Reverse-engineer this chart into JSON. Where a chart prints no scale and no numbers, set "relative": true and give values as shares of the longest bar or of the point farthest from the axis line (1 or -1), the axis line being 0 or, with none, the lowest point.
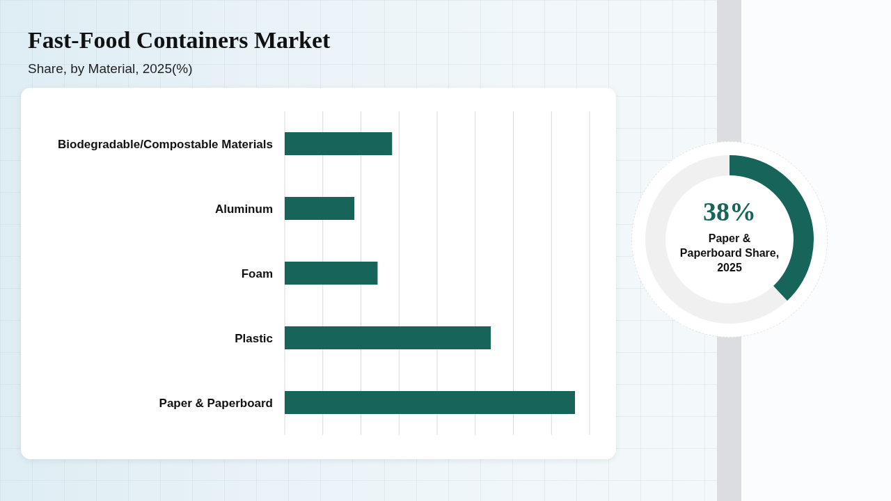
{
  "chart_data": [
    {
      "type": "bar",
      "title": "Fast-Food Containers Market",
      "subtitle": "Share, by Material, 2025(%)",
      "orientation": "horizontal",
      "relative": true,
      "categories": [
        "Biodegradable/Compostable Materials",
        "Aluminum",
        "Foam",
        "Plastic",
        "Paper & Paperboard"
      ],
      "values": [
        0.37,
        0.24,
        0.32,
        0.71,
        1
      ],
      "color": "#17645a",
      "grid": "x"
    },
    {
      "type": "donut",
      "title": "Paper & Paperboard Share, 2025",
      "categories": [
        null,
        null
      ],
      "values": [
        38,
        62
      ],
      "colors": [
        "#17645a",
        "#f0f0f0"
      ],
      "value_labels": [
        "38%",
        null
      ]
    }
  ]
}
